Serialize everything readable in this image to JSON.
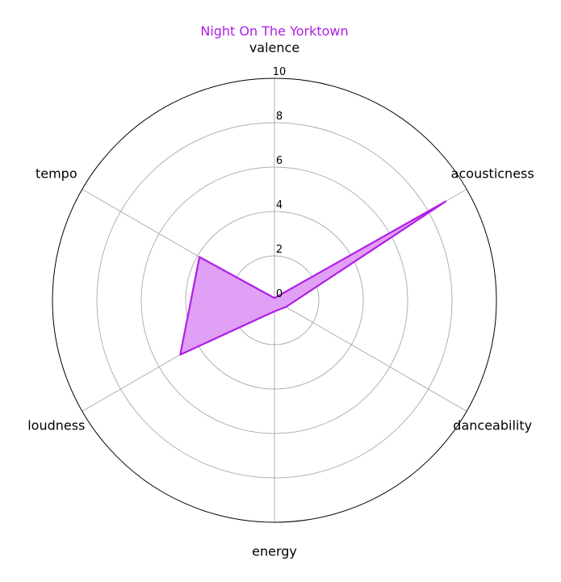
{
  "colors": {
    "accent": "#b01ee6",
    "fill": "#e0a0f5",
    "grid": "#b0b0b0",
    "frame": "#000000"
  },
  "chart_data": {
    "type": "radar",
    "title": "Night On The Yorktown",
    "axes": [
      "valence",
      "acousticness",
      "danceability",
      "energy",
      "loudness",
      "tempo"
    ],
    "r_ticks": [
      0,
      2,
      4,
      6,
      8,
      10
    ],
    "r_range": [
      0,
      10
    ],
    "grid": true,
    "series": [
      {
        "values": [
          0.1,
          8.9,
          0.6,
          0.5,
          4.9,
          3.9
        ]
      }
    ]
  }
}
